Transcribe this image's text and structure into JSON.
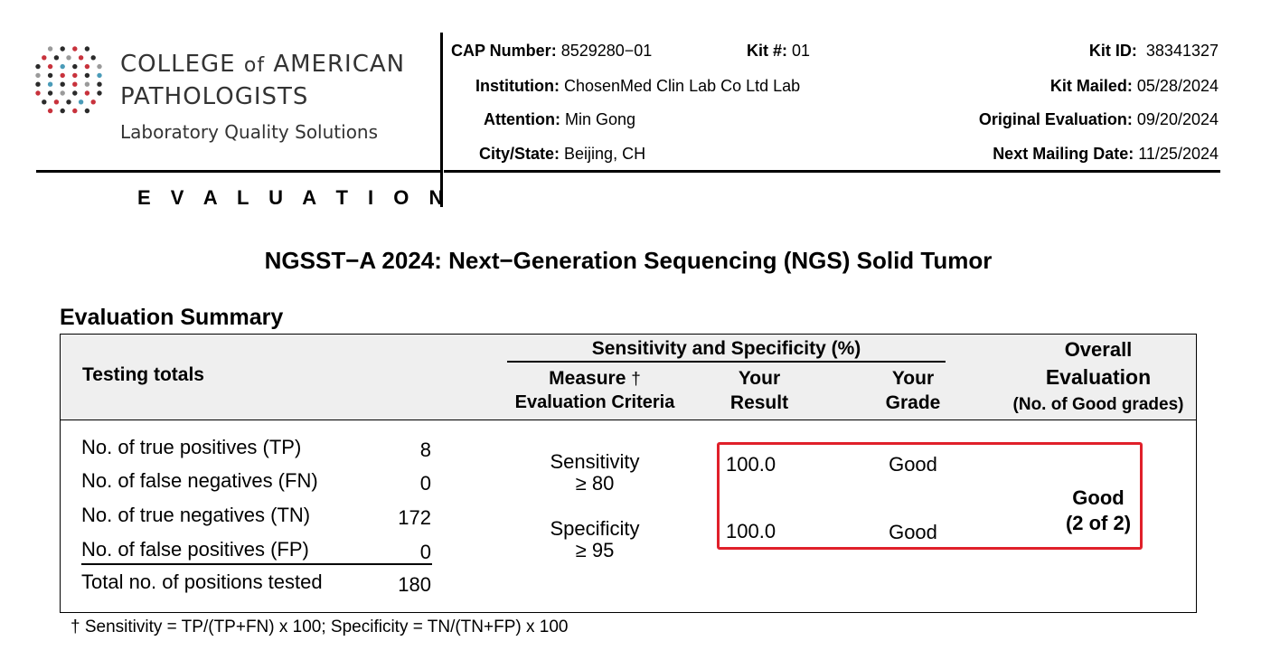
{
  "logo": {
    "line1_a": "COLLEGE ",
    "line1_of": "of",
    "line1_b": " AMERICAN",
    "line2": "PATHOLOGISTS",
    "line3": "Laboratory Quality Solutions",
    "dot_colors": [
      "#2b2b2b",
      "#c8323c",
      "#4a9bb8",
      "#9a9a9a"
    ]
  },
  "section_label": "E V A L U A T I O N",
  "header": {
    "cap_number_label": "CAP Number:",
    "cap_number": "8529280−01",
    "kit_label": "Kit #:",
    "kit": "01",
    "kit_id_label": "Kit ID:",
    "kit_id": "38341327",
    "institution_label": "Institution:",
    "institution": "ChosenMed Clin Lab Co Ltd Lab",
    "kit_mailed_label": "Kit Mailed:",
    "kit_mailed": "05/28/2024",
    "attention_label": "Attention:",
    "attention": "Min Gong",
    "orig_eval_label": "Original Evaluation:",
    "orig_eval": "09/20/2024",
    "city_label": "City/State:",
    "city": "Beijing, CH",
    "next_mail_label": "Next Mailing Date:",
    "next_mail": "11/25/2024"
  },
  "title": "NGSST−A 2024: Next−Generation Sequencing (NGS) Solid Tumor",
  "summary_heading": "Evaluation Summary",
  "table": {
    "testing_totals": "Testing totals",
    "sens_spec_header": "Sensitivity and Specificity (%)",
    "measure": "Measure",
    "dagger": "†",
    "eval_criteria": "Evaluation Criteria",
    "your": "Your",
    "result": "Result",
    "grade": "Grade",
    "overall": "Overall",
    "evaluation": "Evaluation",
    "no_good": "(No. of Good grades)",
    "rows": [
      {
        "label": "No. of true positives (TP)",
        "value": "8"
      },
      {
        "label": "No. of false negatives (FN)",
        "value": "0"
      },
      {
        "label": "No. of true negatives (TN)",
        "value": "172"
      },
      {
        "label": "No. of false positives (FP)",
        "value": "0"
      },
      {
        "label": "Total no. of positions tested",
        "value": "180"
      }
    ],
    "measures": [
      {
        "name": "Sensitivity",
        "criteria": "≥ 80",
        "result": "100.0",
        "grade": "Good"
      },
      {
        "name": "Specificity",
        "criteria": "≥ 95",
        "result": "100.0",
        "grade": "Good"
      }
    ],
    "overall_grade": "Good",
    "overall_count": "(2 of 2)"
  },
  "footnote": "† Sensitivity = TP/(TP+FN) x 100; Specificity = TN/(TN+FP) x 100",
  "highlight_color": "#e0202a"
}
